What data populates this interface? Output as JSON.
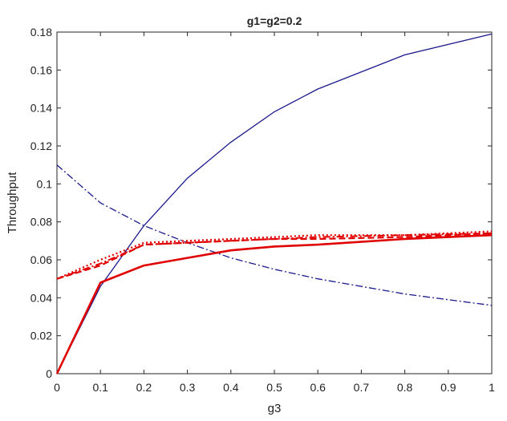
{
  "chart_data": {
    "type": "line",
    "title": "g1=g2=0.2",
    "xlabel": "g3",
    "ylabel": "Throughput",
    "xlim": [
      0,
      1
    ],
    "ylim": [
      0,
      0.18
    ],
    "x_ticks": [
      "0",
      "0.1",
      "0.2",
      "0.3",
      "0.4",
      "0.5",
      "0.6",
      "0.7",
      "0.8",
      "0.9",
      "1"
    ],
    "y_ticks": [
      "0",
      "0.02",
      "0.04",
      "0.06",
      "0.08",
      "0.1",
      "0.12",
      "0.14",
      "0.16",
      "0.18"
    ],
    "grid": false,
    "x": [
      0,
      0.1,
      0.2,
      0.3,
      0.4,
      0.5,
      0.6,
      0.8,
      1
    ],
    "series": [
      {
        "color": "#1a1a8c",
        "style": "solid",
        "width": 1.3,
        "values": [
          0,
          0.046,
          0.078,
          0.103,
          0.122,
          0.138,
          0.15,
          0.168,
          0.179
        ]
      },
      {
        "color": "#1a1a8c",
        "style": "dashdot",
        "width": 1.3,
        "values": [
          0.11,
          0.09,
          0.078,
          0.069,
          0.061,
          0.055,
          0.05,
          0.042,
          0.036
        ]
      },
      {
        "color": "#e00000",
        "style": "solid",
        "width": 2.6,
        "values": [
          0,
          0.048,
          0.057,
          0.061,
          0.065,
          0.067,
          0.068,
          0.071,
          0.073
        ]
      },
      {
        "color": "#e00000",
        "style": "dashed",
        "width": 2.2,
        "values": [
          0.05,
          0.057,
          0.068,
          0.069,
          0.07,
          0.071,
          0.071,
          0.072,
          0.074
        ]
      },
      {
        "color": "#e00000",
        "style": "dashdot",
        "width": 2.0,
        "values": [
          0.05,
          0.058,
          0.068,
          0.069,
          0.07,
          0.071,
          0.072,
          0.073,
          0.074
        ]
      },
      {
        "color": "#e00000",
        "style": "dotted",
        "width": 2.2,
        "values": [
          0.05,
          0.06,
          0.069,
          0.07,
          0.071,
          0.072,
          0.073,
          0.073,
          0.075
        ]
      }
    ]
  }
}
